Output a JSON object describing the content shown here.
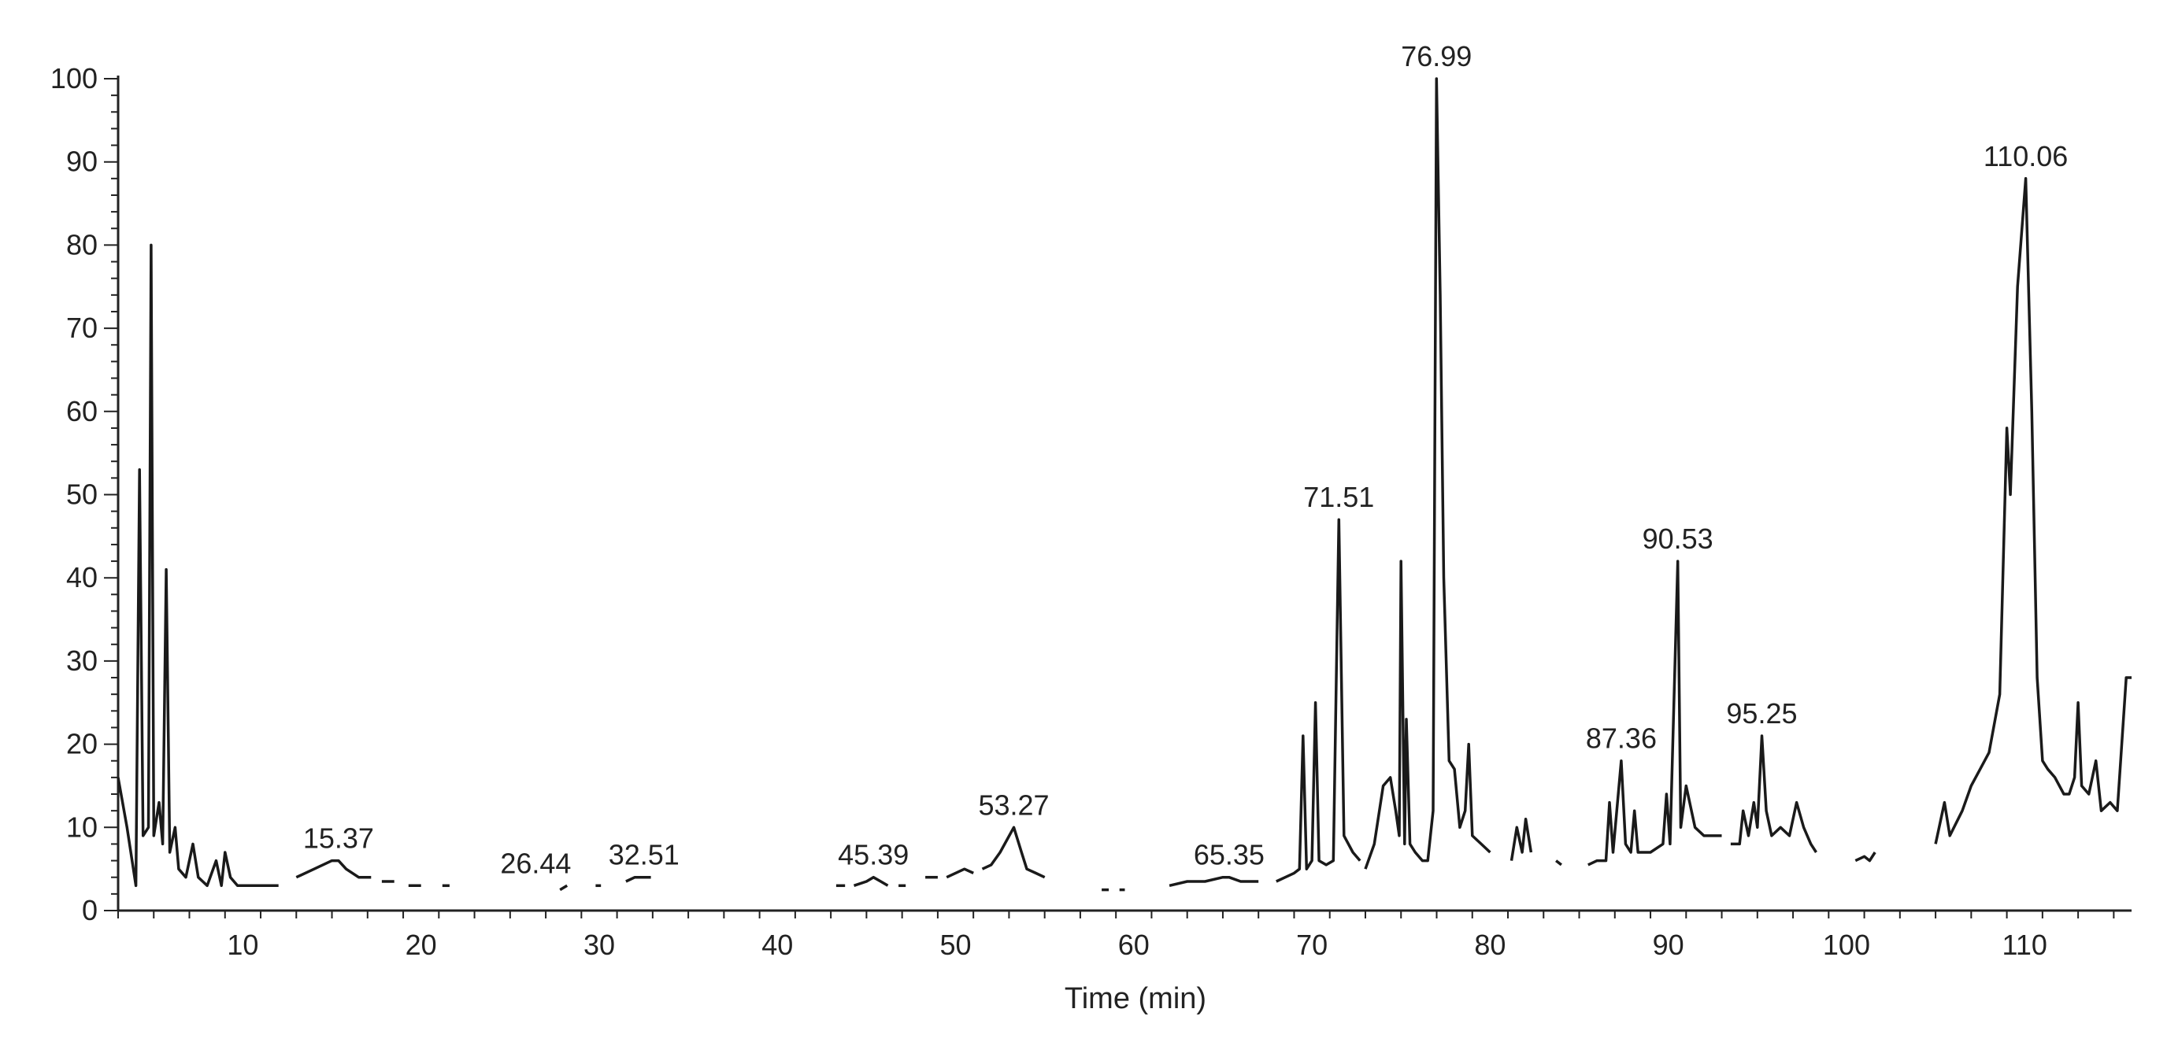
{
  "chart_data": {
    "type": "line",
    "xlabel": "Time (min)",
    "ylabel": "",
    "xlim": [
      3,
      116
    ],
    "ylim": [
      0,
      100
    ],
    "x_ticks": [
      10,
      20,
      30,
      40,
      50,
      60,
      70,
      80,
      90,
      100,
      110
    ],
    "y_ticks": [
      0,
      10,
      20,
      30,
      40,
      50,
      60,
      70,
      80,
      90,
      100
    ],
    "grid": false,
    "line_color": "#1a1a1a",
    "peak_labels": [
      {
        "text": "15.37",
        "x": 15.37,
        "y": 6
      },
      {
        "text": "26.44",
        "x": 26.44,
        "y": 3
      },
      {
        "text": "32.51",
        "x": 32.51,
        "y": 4
      },
      {
        "text": "45.39",
        "x": 45.39,
        "y": 4
      },
      {
        "text": "53.27",
        "x": 53.27,
        "y": 10
      },
      {
        "text": "65.35",
        "x": 65.35,
        "y": 4
      },
      {
        "text": "71.51",
        "x": 71.51,
        "y": 47
      },
      {
        "text": "76.99",
        "x": 76.99,
        "y": 100
      },
      {
        "text": "87.36",
        "x": 87.36,
        "y": 18
      },
      {
        "text": "90.53",
        "x": 90.53,
        "y": 42
      },
      {
        "text": "95.25",
        "x": 95.25,
        "y": 21
      },
      {
        "text": "110.06",
        "x": 110.06,
        "y": 88
      }
    ],
    "segments": [
      [
        [
          3,
          16
        ],
        [
          3.5,
          10
        ],
        [
          4,
          3
        ],
        [
          4.2,
          53
        ],
        [
          4.4,
          9
        ],
        [
          4.7,
          10
        ],
        [
          4.85,
          80
        ],
        [
          5.0,
          9
        ],
        [
          5.3,
          13
        ],
        [
          5.5,
          8
        ],
        [
          5.7,
          41
        ],
        [
          5.9,
          7
        ],
        [
          6.2,
          10
        ],
        [
          6.4,
          5
        ],
        [
          6.8,
          4
        ],
        [
          7.2,
          8
        ],
        [
          7.5,
          4
        ],
        [
          8,
          3
        ],
        [
          8.5,
          6
        ],
        [
          8.8,
          3
        ],
        [
          9.0,
          7
        ],
        [
          9.3,
          4
        ],
        [
          9.7,
          3
        ],
        [
          10.5,
          3
        ],
        [
          11,
          3
        ],
        [
          12,
          3
        ]
      ],
      [
        [
          13,
          4
        ],
        [
          14,
          5
        ],
        [
          15,
          6
        ],
        [
          15.37,
          6
        ],
        [
          15.8,
          5
        ],
        [
          16.5,
          4
        ],
        [
          17.2,
          4
        ]
      ],
      [
        [
          17.8,
          3.5
        ],
        [
          18.5,
          3.5
        ]
      ],
      [
        [
          19.3,
          3
        ],
        [
          20,
          3
        ]
      ],
      [
        [
          21.2,
          3
        ],
        [
          21.6,
          3
        ]
      ],
      [
        [
          27.8,
          2.5
        ],
        [
          28.2,
          3
        ]
      ],
      [
        [
          29.8,
          3
        ],
        [
          30.1,
          3
        ]
      ],
      [
        [
          31.5,
          3.5
        ],
        [
          32,
          4
        ],
        [
          32.51,
          4
        ],
        [
          32.9,
          4
        ]
      ],
      [
        [
          43.3,
          3
        ],
        [
          43.8,
          3
        ]
      ],
      [
        [
          44.3,
          3
        ],
        [
          45,
          3.5
        ],
        [
          45.39,
          4
        ],
        [
          45.8,
          3.5
        ],
        [
          46.2,
          3
        ]
      ],
      [
        [
          46.8,
          3
        ],
        [
          47.2,
          3
        ]
      ],
      [
        [
          48.3,
          4
        ],
        [
          49,
          4
        ]
      ],
      [
        [
          49.5,
          4
        ],
        [
          50,
          4.5
        ],
        [
          50.5,
          5
        ],
        [
          51,
          4.5
        ]
      ],
      [
        [
          51.5,
          5
        ],
        [
          52,
          5.5
        ],
        [
          52.5,
          7
        ],
        [
          53.27,
          10
        ],
        [
          53.7,
          7
        ],
        [
          54,
          5
        ],
        [
          54.5,
          4.5
        ],
        [
          55,
          4
        ]
      ],
      [
        [
          58.2,
          2.5
        ],
        [
          58.6,
          2.5
        ]
      ],
      [
        [
          59.2,
          2.5
        ],
        [
          59.5,
          2.5
        ]
      ],
      [
        [
          62,
          3
        ],
        [
          63,
          3.5
        ],
        [
          64,
          3.5
        ],
        [
          65,
          4
        ],
        [
          65.35,
          4
        ],
        [
          66,
          3.5
        ],
        [
          67,
          3.5
        ]
      ],
      [
        [
          68,
          3.5
        ],
        [
          68.5,
          4
        ],
        [
          69,
          4.5
        ],
        [
          69.3,
          5
        ],
        [
          69.5,
          21
        ],
        [
          69.7,
          5
        ],
        [
          70,
          6
        ],
        [
          70.2,
          25
        ],
        [
          70.4,
          6
        ],
        [
          70.8,
          5.5
        ],
        [
          71.2,
          6
        ],
        [
          71.51,
          47
        ],
        [
          71.8,
          9
        ],
        [
          72.3,
          7
        ],
        [
          72.7,
          6
        ]
      ],
      [
        [
          73,
          5
        ],
        [
          73.5,
          8
        ],
        [
          74,
          15
        ],
        [
          74.4,
          16
        ],
        [
          74.7,
          12
        ],
        [
          74.9,
          9
        ],
        [
          75.0,
          42
        ],
        [
          75.2,
          8
        ],
        [
          75.3,
          23
        ],
        [
          75.5,
          8
        ],
        [
          75.8,
          7
        ],
        [
          76.2,
          6
        ],
        [
          76.5,
          6
        ],
        [
          76.8,
          12
        ],
        [
          76.99,
          100
        ],
        [
          77.2,
          74
        ],
        [
          77.4,
          40
        ],
        [
          77.7,
          18
        ],
        [
          78,
          17
        ],
        [
          78.3,
          10
        ],
        [
          78.6,
          12
        ],
        [
          78.8,
          20
        ],
        [
          79.0,
          9
        ],
        [
          79.5,
          8
        ],
        [
          80,
          7
        ]
      ],
      [
        [
          81.2,
          6
        ],
        [
          81.5,
          10
        ],
        [
          81.8,
          7
        ],
        [
          82,
          11
        ],
        [
          82.3,
          7
        ]
      ],
      [
        [
          83.7,
          6
        ],
        [
          84,
          5.5
        ]
      ],
      [
        [
          85.5,
          5.5
        ],
        [
          86,
          6
        ],
        [
          86.5,
          6
        ],
        [
          86.7,
          13
        ],
        [
          86.9,
          7
        ],
        [
          87.36,
          18
        ],
        [
          87.6,
          8
        ],
        [
          87.9,
          7
        ],
        [
          88.1,
          12
        ],
        [
          88.3,
          7
        ],
        [
          89,
          7
        ],
        [
          89.7,
          8
        ],
        [
          89.9,
          14
        ],
        [
          90.1,
          8
        ],
        [
          90.53,
          42
        ],
        [
          90.7,
          10
        ],
        [
          91,
          15
        ],
        [
          91.5,
          10
        ],
        [
          92,
          9
        ],
        [
          93,
          9
        ]
      ],
      [
        [
          93.5,
          8
        ],
        [
          94,
          8
        ],
        [
          94.2,
          12
        ],
        [
          94.5,
          9
        ],
        [
          94.8,
          13
        ],
        [
          95.0,
          10
        ],
        [
          95.25,
          21
        ],
        [
          95.5,
          12
        ],
        [
          95.8,
          9
        ],
        [
          96.3,
          10
        ],
        [
          96.8,
          9
        ],
        [
          97.2,
          13
        ],
        [
          97.6,
          10
        ],
        [
          98,
          8
        ],
        [
          98.3,
          7
        ]
      ],
      [
        [
          100.5,
          6
        ],
        [
          101,
          6.5
        ],
        [
          101.3,
          6
        ],
        [
          101.6,
          7
        ]
      ],
      [
        [
          105,
          8
        ],
        [
          105.5,
          13
        ],
        [
          105.8,
          9
        ],
        [
          106.5,
          12
        ],
        [
          107,
          15
        ],
        [
          107.5,
          17
        ],
        [
          108,
          19
        ],
        [
          108.6,
          26
        ],
        [
          109.0,
          58
        ],
        [
          109.2,
          50
        ],
        [
          109.6,
          75
        ],
        [
          110.06,
          88
        ],
        [
          110.4,
          60
        ],
        [
          110.7,
          28
        ],
        [
          111,
          18
        ],
        [
          111.3,
          17
        ],
        [
          111.7,
          16
        ],
        [
          112.2,
          14
        ],
        [
          112.5,
          14
        ],
        [
          112.8,
          16
        ],
        [
          113.0,
          25
        ],
        [
          113.2,
          15
        ],
        [
          113.6,
          14
        ],
        [
          114,
          18
        ],
        [
          114.3,
          12
        ],
        [
          114.8,
          13
        ],
        [
          115.2,
          12
        ],
        [
          115.7,
          28
        ],
        [
          116,
          28
        ]
      ]
    ]
  }
}
